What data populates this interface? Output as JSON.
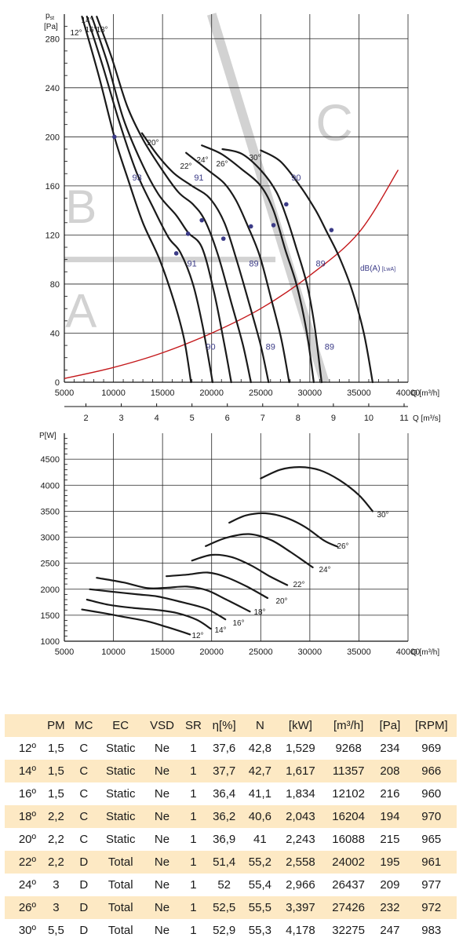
{
  "colors": {
    "curve": "#1a1a1a",
    "grid": "#222222",
    "sound": "#c4181b",
    "marker": "#3b3b87",
    "region": "#d2d2d2",
    "table_stripe": "#fde9c4"
  },
  "chart_data": [
    {
      "type": "line",
      "ylabel": "p",
      "ylabel_sub": "st",
      "yunit": "[Pa]",
      "xlabel": "Q [m³/h]",
      "x2label": "Q [m³/s]",
      "xlim": [
        5000,
        40000
      ],
      "ylim": [
        0,
        300
      ],
      "xticks": [
        5000,
        10000,
        15000,
        20000,
        25000,
        30000,
        35000,
        40000
      ],
      "yticks": [
        0,
        40,
        80,
        120,
        160,
        200,
        240,
        280
      ],
      "x2ticks": [
        2,
        3,
        4,
        5,
        6,
        7,
        8,
        9,
        10,
        11
      ],
      "regions": [
        "A",
        "B",
        "C"
      ],
      "sound_label": "dB(A)",
      "sound_label_sub": "[LwA]",
      "series": [
        {
          "name": "12°",
          "points": [
            [
              6800,
              298
            ],
            [
              8500,
              250
            ],
            [
              10100,
              200
            ],
            [
              11500,
              165
            ],
            [
              13000,
              130
            ],
            [
              14700,
              100
            ],
            [
              16200,
              65
            ],
            [
              17200,
              35
            ],
            [
              17900,
              0
            ]
          ]
        },
        {
          "name": "14°",
          "points": [
            [
              7300,
              298
            ],
            [
              8900,
              258
            ],
            [
              10600,
              212
            ],
            [
              12300,
              172
            ],
            [
              14000,
              143
            ],
            [
              15600,
              118
            ],
            [
              16800,
              106
            ],
            [
              18100,
              80
            ],
            [
              19100,
              45
            ],
            [
              20100,
              0
            ]
          ]
        },
        {
          "name": "16°",
          "points": [
            [
              7800,
              298
            ],
            [
              9400,
              260
            ],
            [
              11000,
              215
            ],
            [
              12800,
              180
            ],
            [
              14600,
              153
            ],
            [
              16400,
              136
            ],
            [
              17600,
              122
            ],
            [
              19000,
              110
            ],
            [
              20200,
              75
            ],
            [
              21200,
              35
            ],
            [
              22000,
              0
            ]
          ]
        },
        {
          "name": "18°",
          "points": [
            [
              8300,
              298
            ],
            [
              9800,
              265
            ],
            [
              11400,
              225
            ],
            [
              13000,
              198
            ],
            [
              14800,
              175
            ],
            [
              16600,
              155
            ],
            [
              18100,
              145
            ],
            [
              19300,
              132
            ],
            [
              20600,
              105
            ],
            [
              22000,
              65
            ],
            [
              23200,
              30
            ],
            [
              24000,
              0
            ]
          ]
        },
        {
          "name": "20°",
          "points": [
            [
              12900,
              203
            ],
            [
              14500,
              185
            ],
            [
              16200,
              170
            ],
            [
              18000,
              160
            ],
            [
              19800,
              150
            ],
            [
              21300,
              130
            ],
            [
              22600,
              98
            ],
            [
              23900,
              62
            ],
            [
              25000,
              30
            ],
            [
              25800,
              0
            ]
          ]
        },
        {
          "name": "22°",
          "points": [
            [
              17400,
              187
            ],
            [
              19600,
              173
            ],
            [
              21300,
              162
            ],
            [
              22500,
              148
            ],
            [
              23700,
              127
            ],
            [
              24900,
              103
            ],
            [
              26000,
              70
            ],
            [
              27100,
              35
            ],
            [
              27900,
              0
            ]
          ]
        },
        {
          "name": "24°",
          "points": [
            [
              19000,
              193
            ],
            [
              21000,
              186
            ],
            [
              23000,
              174
            ],
            [
              25000,
              160
            ],
            [
              26300,
              140
            ],
            [
              27500,
              108
            ],
            [
              28700,
              78
            ],
            [
              29700,
              40
            ],
            [
              30400,
              0
            ]
          ]
        },
        {
          "name": "26°",
          "points": [
            [
              21100,
              190
            ],
            [
              23100,
              186
            ],
            [
              25100,
              172
            ],
            [
              26600,
              155
            ],
            [
              27600,
              135
            ],
            [
              28600,
              110
            ],
            [
              29700,
              80
            ],
            [
              30500,
              45
            ],
            [
              31200,
              0
            ]
          ]
        },
        {
          "name": "30°",
          "points": [
            [
              25000,
              189
            ],
            [
              27000,
              180
            ],
            [
              29000,
              160
            ],
            [
              30600,
              140
            ],
            [
              31700,
              123
            ],
            [
              33000,
              102
            ],
            [
              34300,
              75
            ],
            [
              35500,
              40
            ],
            [
              36400,
              0
            ]
          ]
        }
      ],
      "sound_curve": [
        [
          5000,
          3
        ],
        [
          10000,
          12
        ],
        [
          15000,
          24
        ],
        [
          20000,
          40
        ],
        [
          25000,
          60
        ],
        [
          30000,
          87
        ],
        [
          35000,
          122
        ],
        [
          39000,
          173
        ]
      ],
      "markers": [
        [
          10100,
          200
        ],
        [
          16400,
          105
        ],
        [
          17600,
          121
        ],
        [
          19000,
          132
        ],
        [
          21200,
          117
        ],
        [
          24000,
          127
        ],
        [
          26300,
          128
        ],
        [
          27600,
          145
        ],
        [
          32200,
          124
        ]
      ],
      "annotations": [
        {
          "text": "93",
          "x": 12400,
          "y": 167
        },
        {
          "text": "91",
          "x": 18700,
          "y": 167
        },
        {
          "text": "90",
          "x": 28600,
          "y": 167
        },
        {
          "text": "91",
          "x": 18000,
          "y": 97
        },
        {
          "text": "89",
          "x": 24300,
          "y": 97
        },
        {
          "text": "89",
          "x": 31100,
          "y": 97
        },
        {
          "text": "90",
          "x": 19900,
          "y": 29
        },
        {
          "text": "89",
          "x": 26000,
          "y": 29
        },
        {
          "text": "89",
          "x": 32000,
          "y": 29
        }
      ]
    },
    {
      "type": "line",
      "ylabel": "P[W]",
      "xlabel": "Q [m³/h]",
      "xlim": [
        5000,
        40000
      ],
      "ylim": [
        1000,
        5000
      ],
      "xticks": [
        5000,
        10000,
        15000,
        20000,
        25000,
        30000,
        35000,
        40000
      ],
      "yticks": [
        1000,
        1500,
        2000,
        2500,
        3000,
        3500,
        4000,
        4500
      ],
      "series": [
        {
          "name": "12°",
          "points": [
            [
              6800,
              1610
            ],
            [
              9000,
              1540
            ],
            [
              11000,
              1470
            ],
            [
              13500,
              1380
            ],
            [
              15500,
              1270
            ],
            [
              17800,
              1130
            ]
          ]
        },
        {
          "name": "14°",
          "points": [
            [
              7300,
              1800
            ],
            [
              9500,
              1700
            ],
            [
              12000,
              1640
            ],
            [
              14500,
              1600
            ],
            [
              16500,
              1540
            ],
            [
              18500,
              1410
            ],
            [
              19900,
              1240
            ]
          ]
        },
        {
          "name": "16°",
          "points": [
            [
              7600,
              2000
            ],
            [
              10000,
              1950
            ],
            [
              12500,
              1900
            ],
            [
              14500,
              1860
            ],
            [
              17000,
              1750
            ],
            [
              19500,
              1620
            ],
            [
              21400,
              1420
            ]
          ]
        },
        {
          "name": "18°",
          "points": [
            [
              8300,
              2220
            ],
            [
              11000,
              2130
            ],
            [
              13500,
              2020
            ],
            [
              15500,
              2030
            ],
            [
              17500,
              2050
            ],
            [
              19500,
              1980
            ],
            [
              21500,
              1800
            ],
            [
              23900,
              1570
            ]
          ]
        },
        {
          "name": "20°",
          "points": [
            [
              15400,
              2250
            ],
            [
              17500,
              2280
            ],
            [
              19600,
              2320
            ],
            [
              21500,
              2230
            ],
            [
              23600,
              2050
            ],
            [
              25700,
              1830
            ]
          ]
        },
        {
          "name": "22°",
          "points": [
            [
              18000,
              2550
            ],
            [
              20000,
              2660
            ],
            [
              22000,
              2620
            ],
            [
              24000,
              2460
            ],
            [
              26000,
              2240
            ],
            [
              27700,
              2080
            ]
          ]
        },
        {
          "name": "24°",
          "points": [
            [
              19400,
              2830
            ],
            [
              21500,
              2990
            ],
            [
              23800,
              3060
            ],
            [
              26000,
              2950
            ],
            [
              28000,
              2720
            ],
            [
              30300,
              2420
            ]
          ]
        },
        {
          "name": "26°",
          "points": [
            [
              21800,
              3280
            ],
            [
              23500,
              3420
            ],
            [
              25500,
              3460
            ],
            [
              27500,
              3380
            ],
            [
              29500,
              3200
            ],
            [
              31500,
              2930
            ],
            [
              32800,
              2820
            ]
          ]
        },
        {
          "name": "30°",
          "points": [
            [
              25000,
              4130
            ],
            [
              27000,
              4300
            ],
            [
              29000,
              4350
            ],
            [
              31000,
              4290
            ],
            [
              33000,
              4100
            ],
            [
              35000,
              3810
            ],
            [
              36400,
              3500
            ]
          ]
        }
      ]
    }
  ],
  "table": {
    "headers": [
      "",
      "PM",
      "MC",
      "EC",
      "VSD",
      "SR",
      "η[%]",
      "N",
      "[kW]",
      "[m³/h]",
      "[Pa]",
      "[RPM]"
    ],
    "rows": [
      [
        "12º",
        "1,5",
        "C",
        "Static",
        "Ne",
        "1",
        "37,6",
        "42,8",
        "1,529",
        "9268",
        "234",
        "969"
      ],
      [
        "14º",
        "1,5",
        "C",
        "Static",
        "Ne",
        "1",
        "37,7",
        "42,7",
        "1,617",
        "11357",
        "208",
        "966"
      ],
      [
        "16º",
        "1,5",
        "C",
        "Static",
        "Ne",
        "1",
        "36,4",
        "41,1",
        "1,834",
        "12102",
        "216",
        "960"
      ],
      [
        "18º",
        "2,2",
        "C",
        "Static",
        "Ne",
        "1",
        "36,2",
        "40,6",
        "2,043",
        "16204",
        "194",
        "970"
      ],
      [
        "20º",
        "2,2",
        "C",
        "Static",
        "Ne",
        "1",
        "36,9",
        "41",
        "2,243",
        "16088",
        "215",
        "965"
      ],
      [
        "22º",
        "2,2",
        "D",
        "Total",
        "Ne",
        "1",
        "51,4",
        "55,2",
        "2,558",
        "24002",
        "195",
        "961"
      ],
      [
        "24º",
        "3",
        "D",
        "Total",
        "Ne",
        "1",
        "52",
        "55,4",
        "2,966",
        "26437",
        "209",
        "977"
      ],
      [
        "26º",
        "3",
        "D",
        "Total",
        "Ne",
        "1",
        "52,5",
        "55,5",
        "3,397",
        "27426",
        "232",
        "972"
      ],
      [
        "30º",
        "5,5",
        "D",
        "Total",
        "Ne",
        "1",
        "52,9",
        "55,3",
        "4,178",
        "32275",
        "247",
        "983"
      ]
    ]
  }
}
